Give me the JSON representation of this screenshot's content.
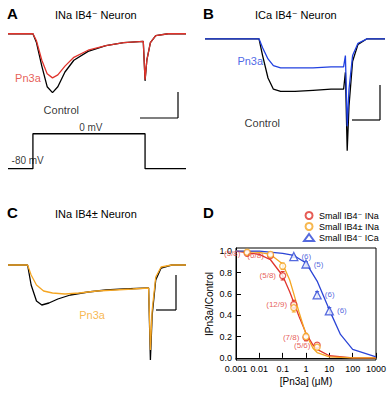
{
  "chart_data": [
    {
      "type": "line",
      "title": "A",
      "subtitle": "INa IB4⁻ Neuron",
      "tick_labels": false,
      "grid": false,
      "xlim": [
        0,
        100
      ],
      "ylim": [
        -1.5,
        0.2
      ],
      "series": [
        {
          "name": "Control",
          "color": "#000000",
          "name_at": [
            20,
            -1.3
          ],
          "x": [
            0,
            14,
            16,
            19,
            22,
            25,
            28,
            32,
            37,
            45,
            55,
            65,
            76,
            77,
            78,
            80,
            83,
            90,
            100
          ],
          "values": [
            0,
            0,
            -0.15,
            -0.55,
            -0.9,
            -1.0,
            -0.9,
            -0.65,
            -0.45,
            -0.3,
            -0.2,
            -0.15,
            -0.13,
            -0.8,
            -0.45,
            -0.15,
            -0.03,
            0,
            0
          ]
        },
        {
          "name": "Pn3a",
          "color": "#e0342c",
          "name_at": [
            4,
            -0.75
          ],
          "x": [
            0,
            14,
            16,
            19,
            22,
            25,
            28,
            32,
            37,
            45,
            55,
            65,
            76,
            77,
            78,
            80,
            83,
            90,
            100
          ],
          "values": [
            0,
            0,
            -0.12,
            -0.45,
            -0.68,
            -0.75,
            -0.7,
            -0.55,
            -0.4,
            -0.28,
            -0.2,
            -0.15,
            -0.13,
            -0.78,
            -0.45,
            -0.15,
            -0.03,
            0,
            0
          ]
        }
      ]
    },
    {
      "type": "line",
      "tick_labels": false,
      "grid": false,
      "xlim": [
        0,
        100
      ],
      "ylim": [
        -90,
        20
      ],
      "series": [
        {
          "color": "#000000",
          "x": [
            0,
            14,
            14,
            77,
            77,
            100
          ],
          "values": [
            -80,
            -80,
            0,
            0,
            -80,
            -80
          ]
        }
      ],
      "annotations": [
        {
          "text": "-80 mV",
          "x": 2,
          "y": -62
        },
        {
          "text": "0 mV",
          "x": 40,
          "y": 15
        }
      ]
    },
    {
      "type": "line",
      "title": "B",
      "subtitle": "ICa IB4⁻ Neuron",
      "tick_labels": false,
      "grid": false,
      "xlim": [
        0,
        100
      ],
      "ylim": [
        -1.1,
        0.15
      ],
      "series": [
        {
          "name": "Control",
          "color": "#000000",
          "name_at": [
            22,
            -0.75
          ],
          "x": [
            0,
            30,
            32,
            35,
            38,
            42,
            50,
            60,
            70,
            77,
            78,
            79,
            80,
            82,
            85,
            90,
            100
          ],
          "values": [
            0,
            0,
            -0.15,
            -0.35,
            -0.45,
            -0.47,
            -0.47,
            -0.46,
            -0.45,
            -0.45,
            -0.3,
            -1.0,
            -0.6,
            -0.2,
            -0.05,
            0,
            0
          ]
        },
        {
          "name": "Pn3a",
          "color": "#2040e0",
          "name_at": [
            18,
            -0.2
          ],
          "x": [
            0,
            30,
            32,
            35,
            38,
            42,
            50,
            60,
            70,
            77,
            78,
            79,
            80,
            82,
            85,
            90,
            100
          ],
          "values": [
            0,
            0,
            -0.08,
            -0.18,
            -0.24,
            -0.26,
            -0.26,
            -0.26,
            -0.25,
            -0.25,
            -0.15,
            -0.78,
            -0.45,
            -0.15,
            -0.04,
            0,
            0
          ]
        }
      ]
    },
    {
      "type": "line",
      "title": "C",
      "subtitle": "INa IB4± Neuron",
      "tick_labels": false,
      "grid": false,
      "xlim": [
        0,
        100
      ],
      "ylim": [
        -1.0,
        0.4
      ],
      "series": [
        {
          "color": "#000000",
          "x": [
            0,
            11,
            13,
            16,
            19,
            23,
            28,
            35,
            45,
            55,
            65,
            79,
            80,
            81,
            83,
            86,
            92,
            100
          ],
          "values": [
            0,
            0,
            -0.2,
            -0.36,
            -0.4,
            -0.38,
            -0.34,
            -0.3,
            -0.27,
            -0.25,
            -0.24,
            -0.23,
            -0.95,
            -0.5,
            -0.15,
            -0.03,
            0,
            0
          ]
        },
        {
          "name": "Pn3a",
          "color": "#f5a623",
          "name_at": [
            40,
            -0.5
          ],
          "x": [
            0,
            11,
            13,
            16,
            20,
            25,
            32,
            40,
            50,
            60,
            70,
            79,
            80,
            81,
            83,
            86,
            92,
            100
          ],
          "values": [
            0,
            0,
            -0.1,
            -0.2,
            -0.26,
            -0.28,
            -0.29,
            -0.28,
            -0.26,
            -0.25,
            -0.24,
            -0.23,
            -0.85,
            -0.45,
            -0.12,
            -0.02,
            0,
            0
          ]
        }
      ]
    },
    {
      "type": "scatter",
      "title": "D",
      "log": "x",
      "grid": false,
      "legend": "upper right",
      "x_label": "[Pn3a] (μM)",
      "y_label": "IPn3a/IControl",
      "xlim": [
        0.001,
        1000
      ],
      "xticks": [
        0.001,
        0.01,
        0.1,
        1,
        10,
        100,
        1000
      ],
      "ylim": [
        -0.02,
        1.03
      ],
      "yticks": [
        {
          "value": 0,
          "label": "0.0"
        },
        0.2,
        0.4,
        0.6,
        0.8,
        {
          "value": 1,
          "label": "1.0"
        }
      ],
      "series": [
        {
          "type": "line",
          "color": "#e0342c",
          "x": [
            0.001,
            0.01,
            0.03,
            0.1,
            0.2,
            0.3,
            0.5,
            1,
            2,
            3,
            10,
            100,
            1000
          ],
          "values": [
            1.0,
            0.97,
            0.92,
            0.77,
            0.62,
            0.52,
            0.39,
            0.23,
            0.12,
            0.08,
            0.02,
            0.0,
            0.0
          ]
        },
        {
          "type": "line",
          "color": "#f5a623",
          "x": [
            0.001,
            0.01,
            0.03,
            0.1,
            0.2,
            0.3,
            0.5,
            1,
            2,
            3,
            10,
            100,
            1000
          ],
          "values": [
            1.0,
            0.99,
            0.97,
            0.88,
            0.73,
            0.6,
            0.43,
            0.22,
            0.09,
            0.05,
            0.01,
            0.0,
            0.0
          ]
        },
        {
          "type": "line",
          "color": "#2b45d6",
          "x": [
            0.001,
            0.01,
            0.1,
            0.3,
            1,
            3,
            10,
            30,
            100,
            1000
          ],
          "values": [
            1.0,
            1.0,
            0.98,
            0.96,
            0.89,
            0.72,
            0.45,
            0.22,
            0.08,
            0.01
          ]
        },
        {
          "type": "scatter",
          "name": "Small IB4⁻ INa",
          "color": "#e0342c",
          "marker": "circle",
          "x": [
            0.003,
            0.03,
            0.1,
            0.3,
            1,
            3
          ],
          "values": [
            0.98,
            0.96,
            0.77,
            0.5,
            0.19,
            0.12
          ],
          "errors": [
            0.01,
            0.02,
            0.04,
            0.04,
            0.03,
            0.02
          ],
          "labels": [
            "(5/8)",
            "(6/8)",
            "(5/8)",
            "(12/9)",
            "(7/8)",
            "(5/6)"
          ]
        },
        {
          "type": "scatter",
          "name": "Small IB4± INa",
          "color": "#f5a623",
          "marker": "circle",
          "x": [
            0.003,
            0.03,
            0.1,
            0.3,
            1,
            3
          ],
          "values": [
            0.99,
            0.97,
            0.86,
            0.47,
            0.2,
            0.1
          ],
          "errors": [
            0.01,
            0.02,
            0.03,
            0.04,
            0.03,
            0.02
          ]
        },
        {
          "type": "scatter",
          "name": "Small IB4⁻ ICa",
          "color": "#2b45d6",
          "marker": "triangle",
          "x": [
            0.3,
            1,
            3,
            10
          ],
          "values": [
            0.95,
            0.88,
            0.59,
            0.44
          ],
          "errors": [
            0.01,
            0.02,
            0.03,
            0.03
          ],
          "labels": [
            "(6)",
            "(5)",
            "(6)",
            "(6)"
          ]
        }
      ]
    }
  ]
}
